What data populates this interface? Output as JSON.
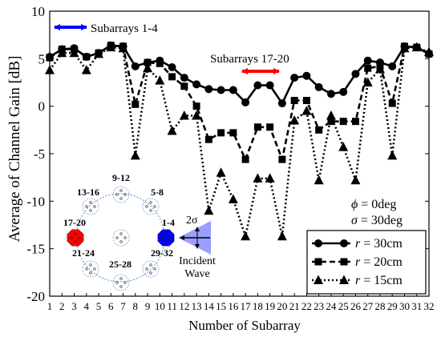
{
  "chart_data": {
    "type": "line",
    "xlabel": "Number of Subarray",
    "ylabel": "Average of Channel Gain [dB]",
    "x": [
      1,
      2,
      3,
      4,
      5,
      6,
      7,
      8,
      9,
      10,
      11,
      12,
      13,
      14,
      15,
      16,
      17,
      18,
      19,
      20,
      21,
      22,
      23,
      24,
      25,
      26,
      27,
      28,
      29,
      30,
      31,
      32
    ],
    "xlim": [
      1,
      32
    ],
    "ylim": [
      -20,
      10
    ],
    "yticks": [
      10,
      5,
      0,
      -5,
      -10,
      -15,
      -20
    ],
    "grid": false,
    "legend_position": "bottom-right",
    "series": [
      {
        "name": "r = 30cm",
        "label_var": "r",
        "label_value": " = 30cm",
        "marker": "circle",
        "line": "solid",
        "values": [
          5.2,
          6.0,
          6.1,
          5.2,
          5.6,
          6.4,
          6.3,
          4.2,
          4.6,
          4.8,
          4.1,
          3.0,
          2.3,
          1.8,
          1.7,
          1.7,
          0.4,
          2.2,
          2.2,
          0.3,
          3.0,
          3.2,
          2.0,
          1.3,
          1.5,
          3.4,
          4.8,
          4.6,
          4.2,
          6.3,
          6.2,
          5.5
        ]
      },
      {
        "name": "r = 20cm",
        "label_var": "r",
        "label_value": " = 20cm",
        "marker": "square",
        "line": "dashed",
        "values": [
          5.1,
          6.0,
          6.0,
          5.2,
          5.6,
          6.4,
          6.3,
          0.2,
          4.6,
          4.5,
          3.1,
          2.1,
          0.0,
          -3.5,
          -2.8,
          -2.8,
          -5.6,
          -2.2,
          -2.2,
          -5.6,
          0.6,
          0.6,
          -2.5,
          -1.6,
          -1.6,
          -1.6,
          4.0,
          4.2,
          0.3,
          6.3,
          6.2,
          5.5
        ]
      },
      {
        "name": "r = 15cm",
        "label_var": "r",
        "label_value": " = 15cm",
        "marker": "triangle",
        "line": "dotted",
        "values": [
          3.8,
          5.6,
          5.6,
          3.8,
          5.5,
          6.2,
          6.1,
          -5.2,
          4.0,
          2.7,
          -2.6,
          -1.0,
          -1.0,
          -11.0,
          -7.0,
          -9.8,
          -13.7,
          -7.6,
          -7.6,
          -13.7,
          -1.5,
          -0.5,
          -7.8,
          -1.0,
          -4.3,
          -7.8,
          2.5,
          3.9,
          -5.2,
          6.1,
          6.2,
          5.7
        ]
      }
    ],
    "annotations": {
      "subarrays_1_4": "Subarrays 1-4",
      "subarrays_17_20": "Subarrays 17-20",
      "phi_sym": "ϕ",
      "phi_val": " = 0deg",
      "sigma_sym": "σ",
      "sigma_val": " = 30deg",
      "spread_label": "2σ",
      "incident_line1": "Incident",
      "incident_line2": "Wave"
    },
    "inset": {
      "group_labels": [
        "9-12",
        "13-16",
        "5-8",
        "17-20",
        "1-4",
        "21-24",
        "29-32",
        "25-28"
      ],
      "highlight_colors": {
        "17-20": "#ff0000",
        "1-4": "#0000ff"
      }
    },
    "colors": {
      "blue_arrow": "#0000ff",
      "red_arrow": "#ff0000",
      "wave_fill": "#8a8cff"
    }
  }
}
